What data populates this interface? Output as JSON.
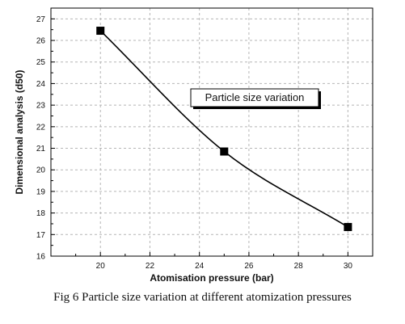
{
  "chart_data": {
    "type": "line",
    "xlabel": "Atomisation pressure (bar)",
    "ylabel": "Dimensional analysis (d50)",
    "xlim": [
      18,
      31
    ],
    "ylim": [
      16,
      27.5
    ],
    "x_ticks": [
      20,
      22,
      24,
      26,
      28,
      30
    ],
    "y_ticks": [
      16,
      17,
      18,
      19,
      20,
      21,
      22,
      23,
      24,
      25,
      26,
      27
    ],
    "grid": true,
    "series": [
      {
        "name": "Particle size variation",
        "x": [
          20,
          25,
          30
        ],
        "y": [
          26.45,
          20.85,
          17.35
        ]
      }
    ],
    "legend_position": "upper-right",
    "caption": "Fig 6 Particle size variation at different atomization pressures"
  }
}
